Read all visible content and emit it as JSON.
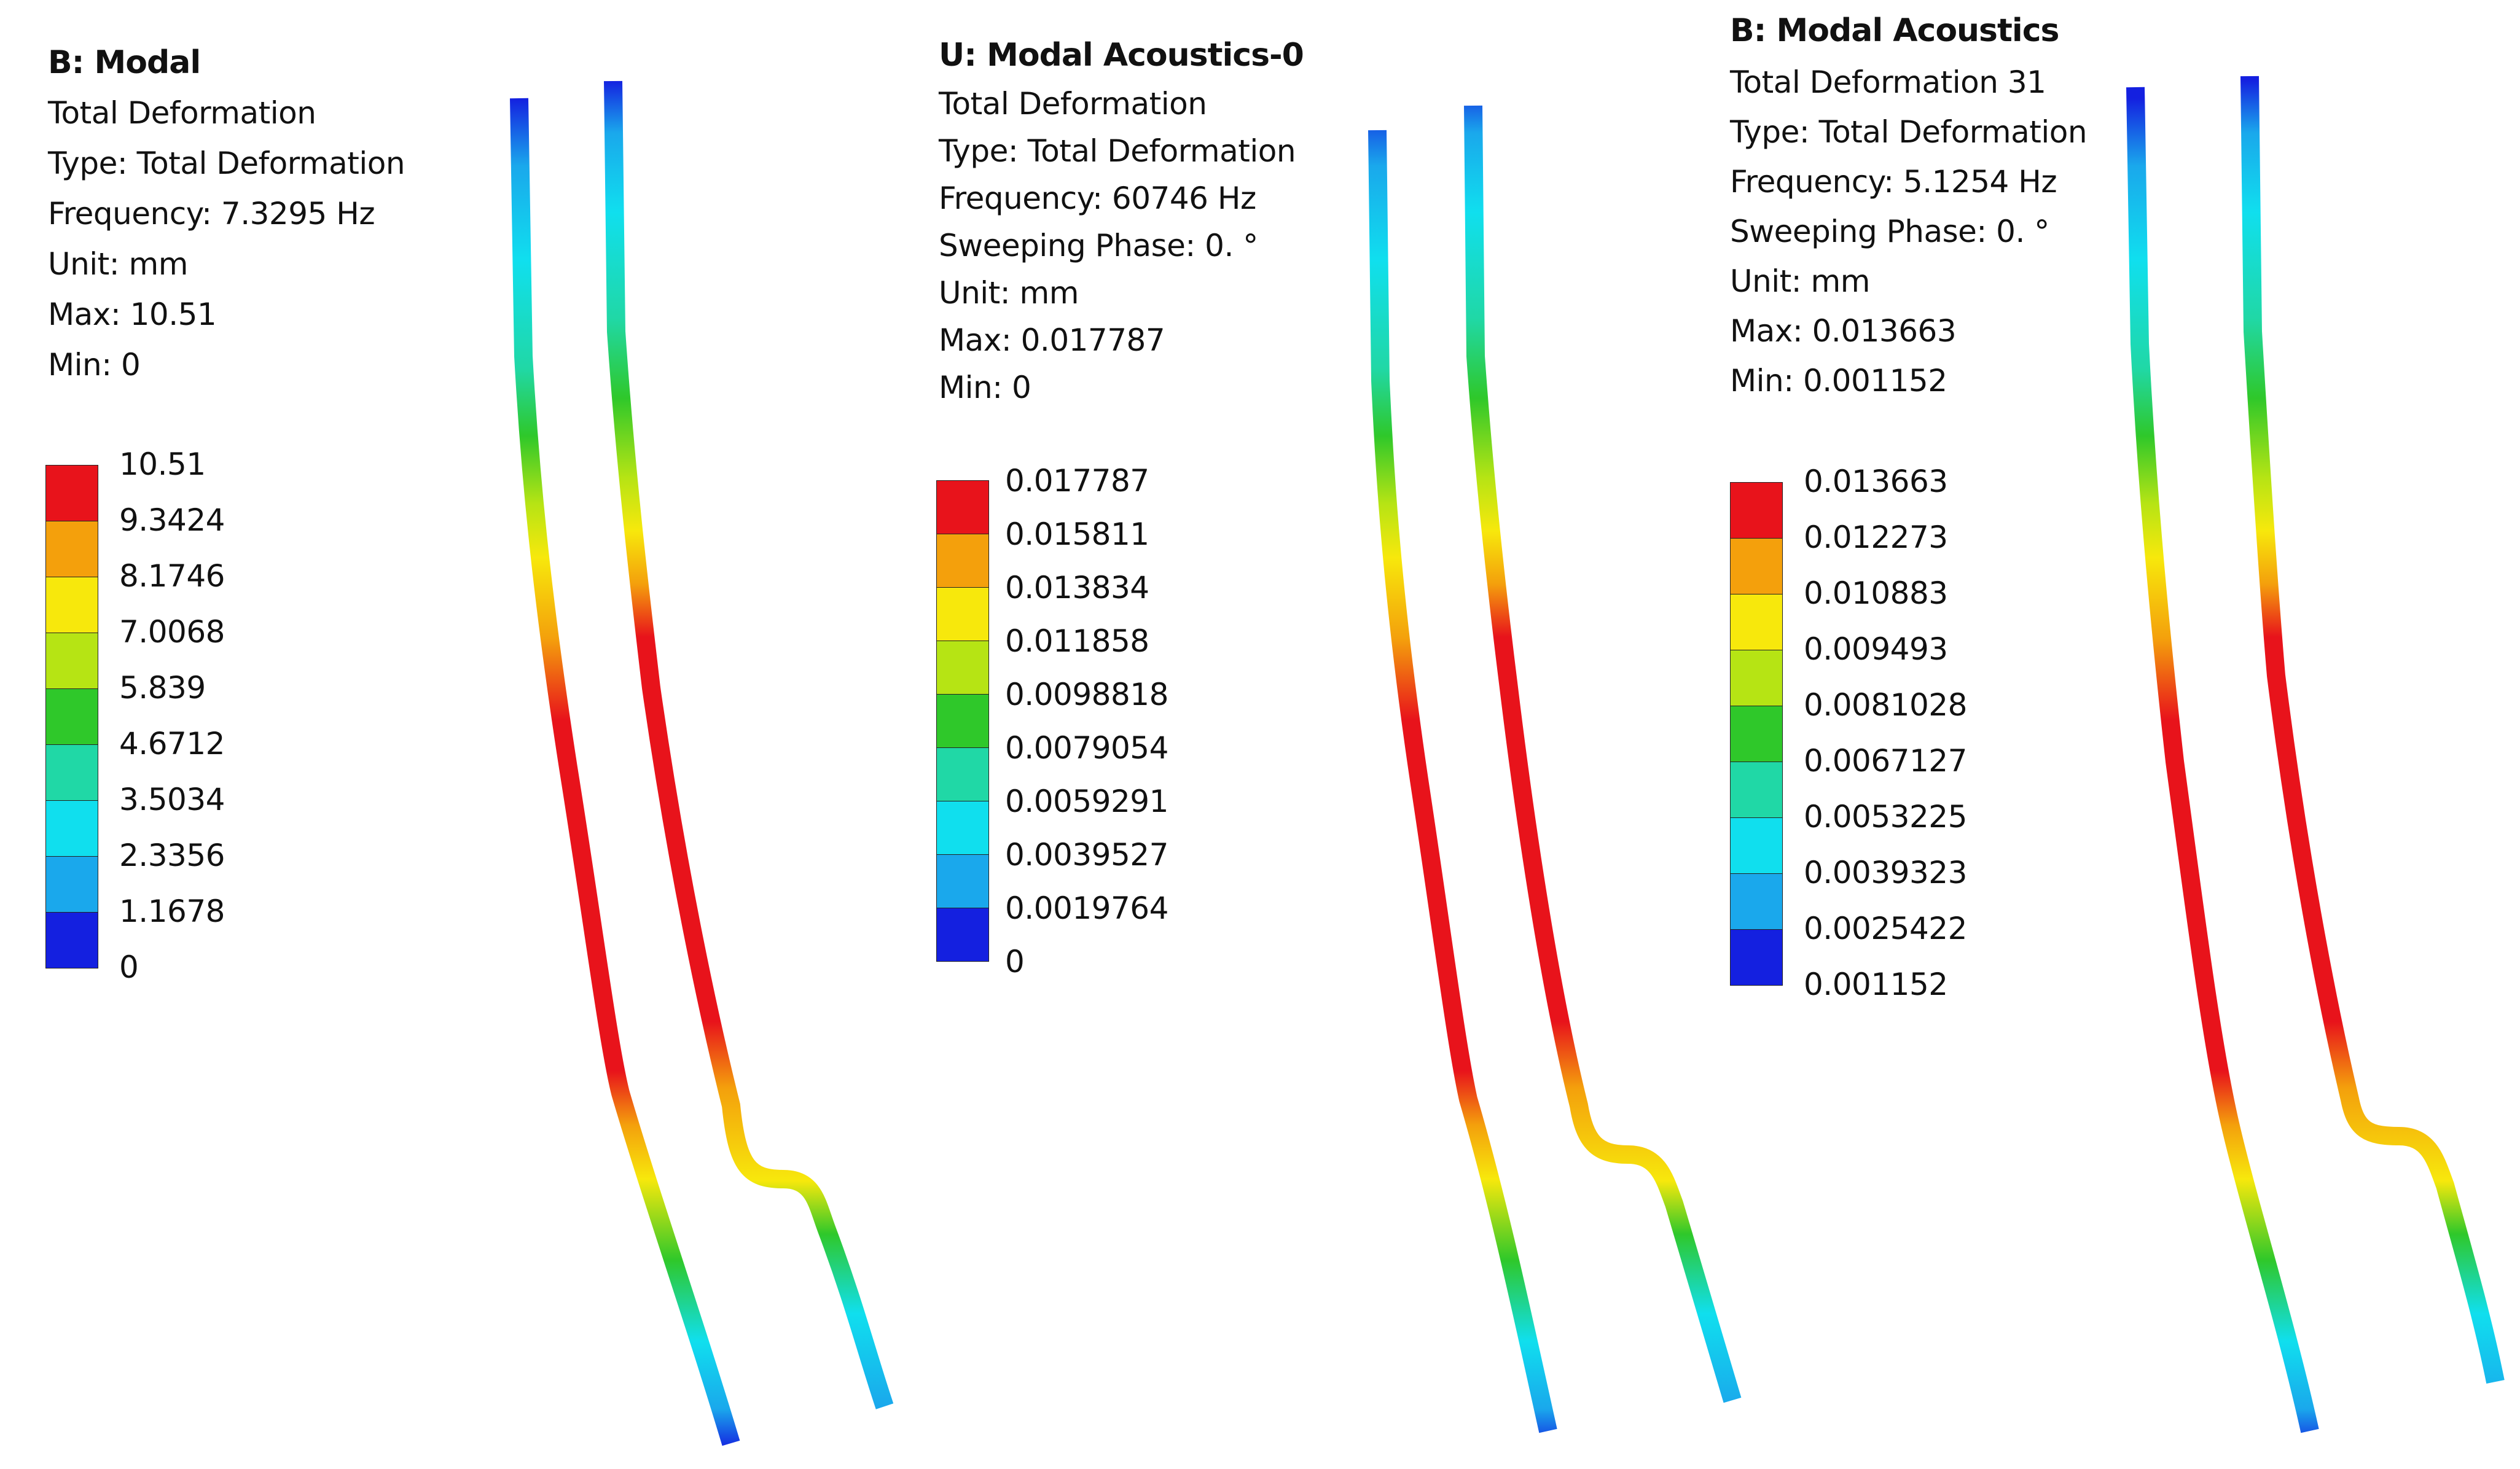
{
  "panels": [
    {
      "title": "B: Modal",
      "lines": [
        "Total Deformation",
        "Type: Total Deformation",
        "Frequency: 7.3295 Hz",
        "Unit: mm",
        "Max: 10.51",
        "Min: 0"
      ],
      "legend": [
        "10.51",
        "9.3424",
        "8.1746",
        "7.0068",
        "5.839",
        "4.6712",
        "3.5034",
        "2.3356",
        "1.1678",
        "0"
      ]
    },
    {
      "title": "U: Modal Acoustics-0",
      "lines": [
        "Total Deformation",
        "Type: Total Deformation",
        "Frequency: 60746 Hz",
        "Sweeping Phase: 0. °",
        "Unit: mm",
        "Max: 0.017787",
        "Min: 0"
      ],
      "legend": [
        "0.017787",
        "0.015811",
        "0.013834",
        "0.011858",
        "0.0098818",
        "0.0079054",
        "0.0059291",
        "0.0039527",
        "0.0019764",
        "0"
      ]
    },
    {
      "title": "B: Modal Acoustics",
      "lines": [
        "Total Deformation 31",
        "Type: Total Deformation",
        "Frequency: 5.1254 Hz",
        "Sweeping Phase: 0. °",
        "Unit: mm",
        "Max: 0.013663",
        "Min: 0.001152"
      ],
      "legend": [
        "0.013663",
        "0.012273",
        "0.010883",
        "0.009493",
        "0.0081028",
        "0.0067127",
        "0.0053225",
        "0.0039323",
        "0.0025422",
        "0.001152"
      ]
    }
  ],
  "colors": {
    "contour_scale": [
      "#e8131b",
      "#f4a00c",
      "#f7e80c",
      "#b6e414",
      "#2fc82a",
      "#20d8a6",
      "#10dfee",
      "#1aa8ec",
      "#1420e0"
    ]
  }
}
